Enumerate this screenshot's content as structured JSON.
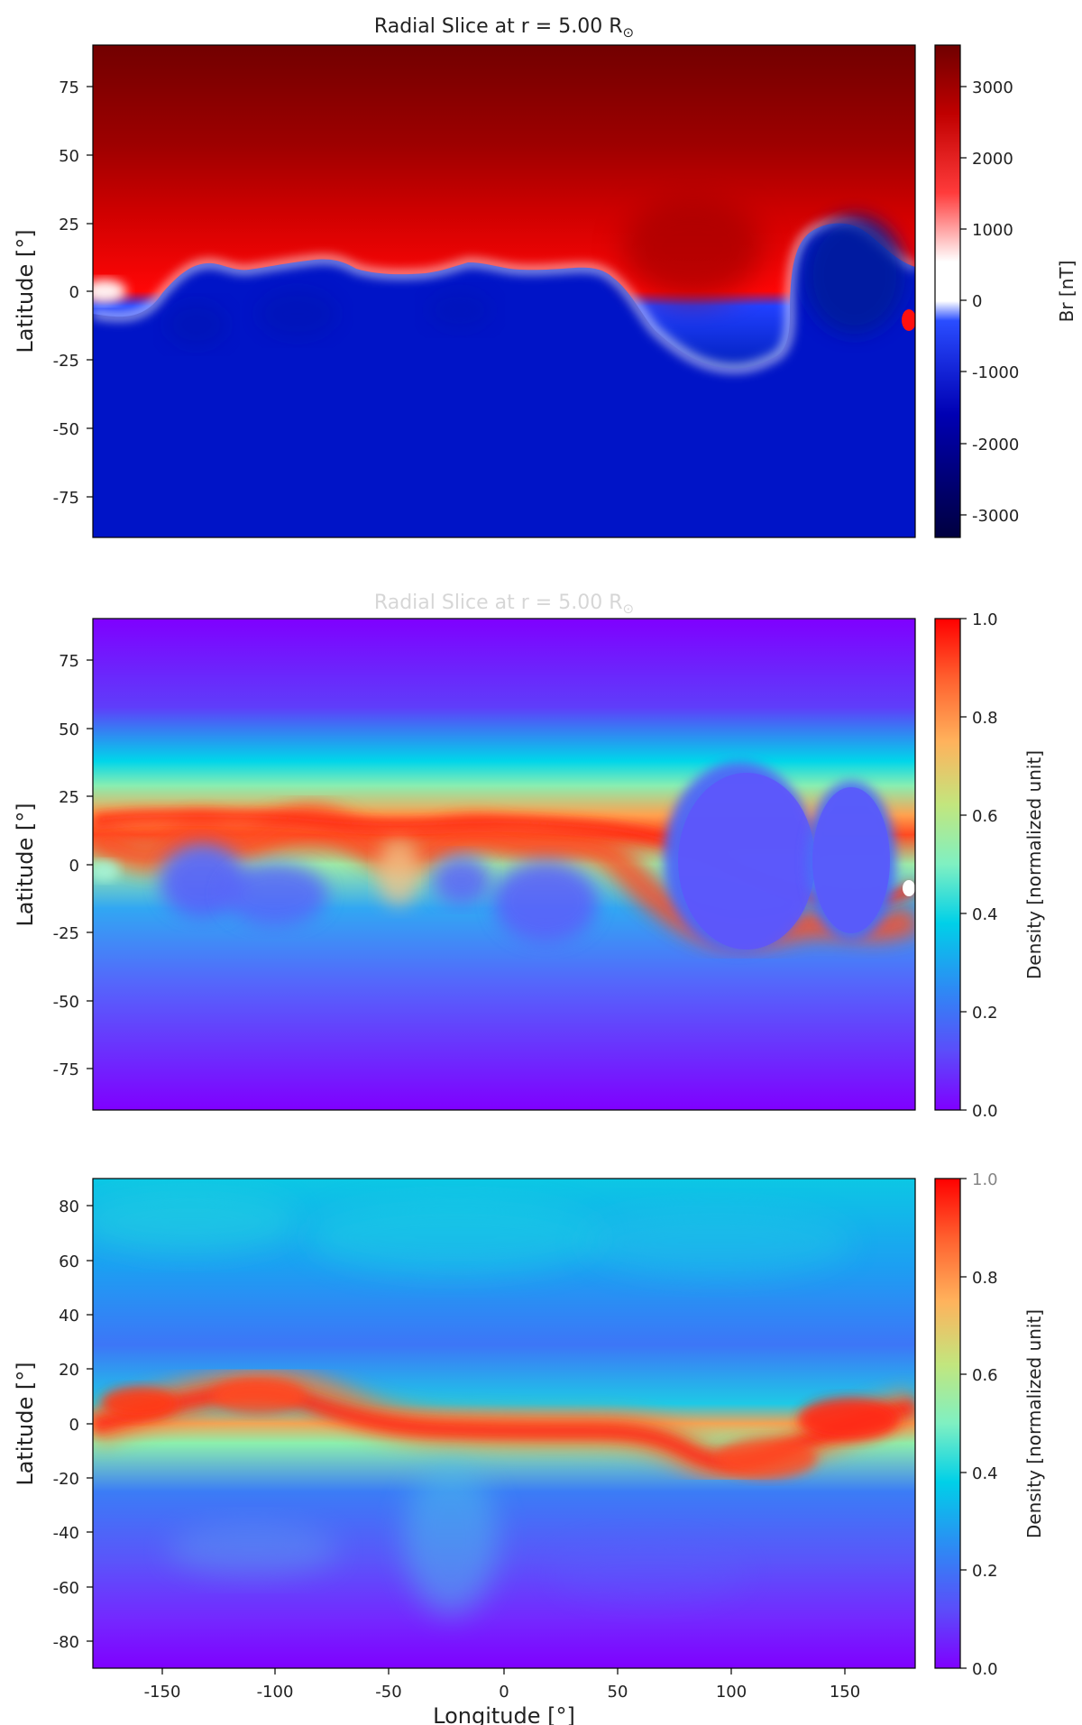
{
  "chart_data": [
    {
      "type": "heatmap",
      "title": "Radial Slice at r = 5.00 R",
      "title_symbol": "⊙",
      "xlabel": "",
      "ylabel": "Latitude [°]",
      "xlim": [
        -180,
        180
      ],
      "ylim": [
        -90,
        90
      ],
      "yticks": [
        -75,
        -50,
        -25,
        0,
        25,
        50,
        75
      ],
      "colormap": "seismic",
      "colorbar_label": "Br [nT]",
      "colorbar_range": [
        -3300,
        3600
      ],
      "colorbar_ticks": [
        -3000,
        -2000,
        -1000,
        0,
        1000,
        2000,
        3000
      ],
      "colors": {
        "positive_deep": "#7a0000",
        "positive": "#d40000",
        "neutral": "#ffffff",
        "negative": "#0014d2",
        "negative_deep": "#00003f"
      },
      "features": [
        "positive polarity north of a wavy current sheet near 0° to 12° latitude",
        "negative polarity bubble near 150° longitude extending to 25° latitude",
        "positive polarity lobe dipping to -30° latitude near 100° longitude"
      ]
    },
    {
      "type": "heatmap",
      "title": "Radial Slice at r = 5.00 R",
      "title_symbol": "⊙",
      "xlabel": "",
      "ylabel": "Latitude [°]",
      "xlim": [
        -180,
        180
      ],
      "ylim": [
        -90,
        90
      ],
      "yticks": [
        -75,
        -50,
        -25,
        0,
        25,
        50,
        75
      ],
      "colormap": "rainbow",
      "colorbar_label": "Density [normalized unit]",
      "colorbar_range": [
        0,
        1
      ],
      "colorbar_ticks": [
        "0.0",
        "0.2",
        "0.4",
        "0.6",
        "0.8",
        "1.0"
      ],
      "features": [
        "high density streamer belt along the current sheet",
        "low density cells inside closed loops near 80° and 150° longitude",
        "low density near both poles"
      ]
    },
    {
      "type": "heatmap",
      "title": "",
      "xlabel": "Longitude [°]",
      "ylabel": "Latitude [°]",
      "xlim": [
        -180,
        180
      ],
      "ylim": [
        -90,
        90
      ],
      "xticks": [
        -150,
        -100,
        -50,
        0,
        50,
        100,
        150
      ],
      "yticks": [
        -80,
        -60,
        -40,
        -20,
        0,
        20,
        40,
        60,
        80
      ],
      "colormap": "rainbow",
      "colorbar_label": "Density [normalized unit]",
      "colorbar_range": [
        0,
        1
      ],
      "colorbar_ticks": [
        "0.0",
        "0.2",
        "0.4",
        "0.6",
        "0.8",
        "1.0"
      ],
      "features": [
        "broad density band near equator with peaks near -150°, -100°, 100° and 140° longitude",
        "patchy low-to-moderate background",
        "lowest density near the south pole"
      ]
    }
  ]
}
